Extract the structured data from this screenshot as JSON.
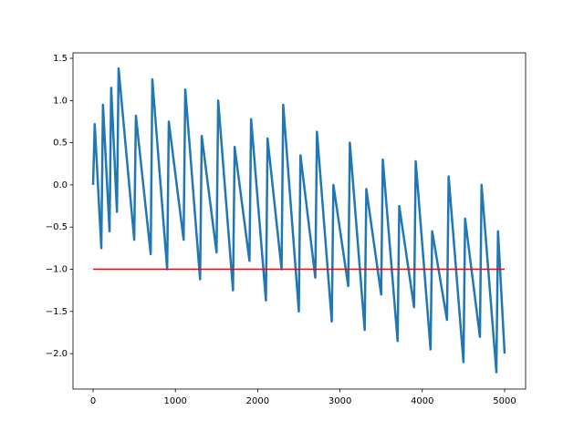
{
  "chart_data": {
    "type": "line",
    "xlim": [
      -244,
      5255
    ],
    "ylim": [
      -2.42,
      1.565
    ],
    "xticks": [
      0,
      1000,
      2000,
      3000,
      4000,
      5000
    ],
    "yticks": [
      1.5,
      1.0,
      0.5,
      0.0,
      -0.5,
      -1.0,
      -1.5,
      -2.0
    ],
    "ytick_labels": [
      "1.5",
      "1.0",
      "0.5",
      "0.0",
      "−0.5",
      "−1.0",
      "−1.5",
      "−2.0"
    ],
    "series": [
      {
        "color": "#1f77b4",
        "x": [
          0,
          20,
          100,
          120,
          200,
          220,
          290,
          310,
          500,
          520,
          700,
          720,
          900,
          920,
          1100,
          1120,
          1300,
          1320,
          1500,
          1520,
          1700,
          1720,
          1900,
          1920,
          2100,
          2120,
          2290,
          2310,
          2500,
          2520,
          2700,
          2720,
          2900,
          2920,
          3100,
          3120,
          3300,
          3320,
          3500,
          3520,
          3700,
          3720,
          3900,
          3920,
          4100,
          4120,
          4300,
          4320,
          4500,
          4520,
          4700,
          4720,
          4900,
          4920,
          5000
        ],
        "values": [
          0,
          0.72,
          -0.75,
          0.95,
          -0.55,
          1.15,
          -0.32,
          1.38,
          -0.65,
          0.82,
          -0.82,
          1.25,
          -1.0,
          0.75,
          -0.65,
          1.13,
          -1.12,
          0.58,
          -0.8,
          1.0,
          -1.25,
          0.45,
          -0.9,
          0.78,
          -1.37,
          0.55,
          -1.0,
          0.95,
          -1.5,
          0.35,
          -1.1,
          0.63,
          -1.62,
          0.0,
          -1.2,
          0.5,
          -1.72,
          -0.05,
          -1.3,
          0.3,
          -1.85,
          -0.25,
          -1.45,
          0.28,
          -1.95,
          -0.55,
          -1.6,
          0.1,
          -2.1,
          -0.4,
          -1.8,
          0.0,
          -2.22,
          -0.55,
          -2.0
        ]
      },
      {
        "color": "#ff0000",
        "x": [
          0,
          5000
        ],
        "values": [
          -1.0,
          -1.0
        ]
      }
    ]
  }
}
